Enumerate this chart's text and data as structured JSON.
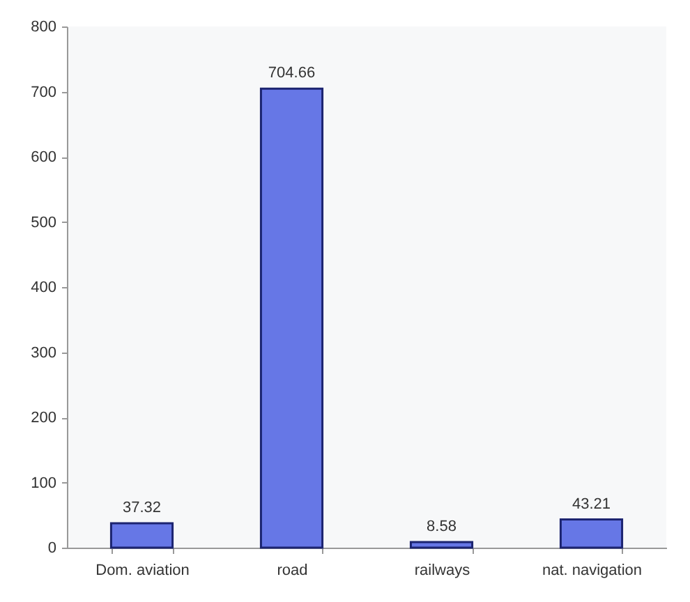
{
  "chart_data": {
    "type": "bar",
    "categories": [
      "Dom. aviation",
      "road",
      "railways",
      "nat. navigation"
    ],
    "values": [
      37.32,
      704.66,
      8.58,
      43.21
    ],
    "color": "#6677e6",
    "ylim": [
      0,
      800
    ],
    "yticks": [
      0,
      100,
      200,
      300,
      400,
      500,
      600,
      700,
      800
    ],
    "data_labels": true
  }
}
